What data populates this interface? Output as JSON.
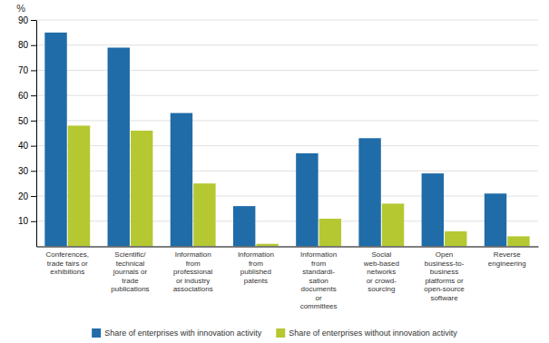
{
  "chart_data": {
    "type": "bar",
    "categories": [
      "Conferences,\ntrade fairs or\nexhibitions",
      "Scientific/\ntechnical\njournals or\ntrade\npublications",
      "Information\nfrom\nprofessional\nor industry\nassociations",
      "Information\nfrom\npublished\npatents",
      "Information\nfrom\nstandardi-\nsation\ndocuments\nor\ncommittees",
      "Social\nweb-based\nnetworks\nor crowd-\nsourcing",
      "Open\nbusiness-to-\nbusiness\nplatforms or\nopen-source\nsoftware",
      "Reverse\nengineering"
    ],
    "series": [
      {
        "name": "Share of enterprises with innovation activity",
        "color": "#1f6ca8",
        "values": [
          85,
          79,
          53,
          16,
          37,
          43,
          29,
          21
        ]
      },
      {
        "name": "Share of enterprises without innovation activity",
        "color": "#b5c832",
        "values": [
          48,
          46,
          25,
          1,
          11,
          17,
          6,
          4
        ]
      }
    ],
    "ylabel": "%",
    "ylim": [
      0,
      90
    ],
    "yticks": [
      10,
      20,
      30,
      40,
      50,
      60,
      70,
      80,
      90
    ],
    "grid": true,
    "legend": "bottom"
  }
}
